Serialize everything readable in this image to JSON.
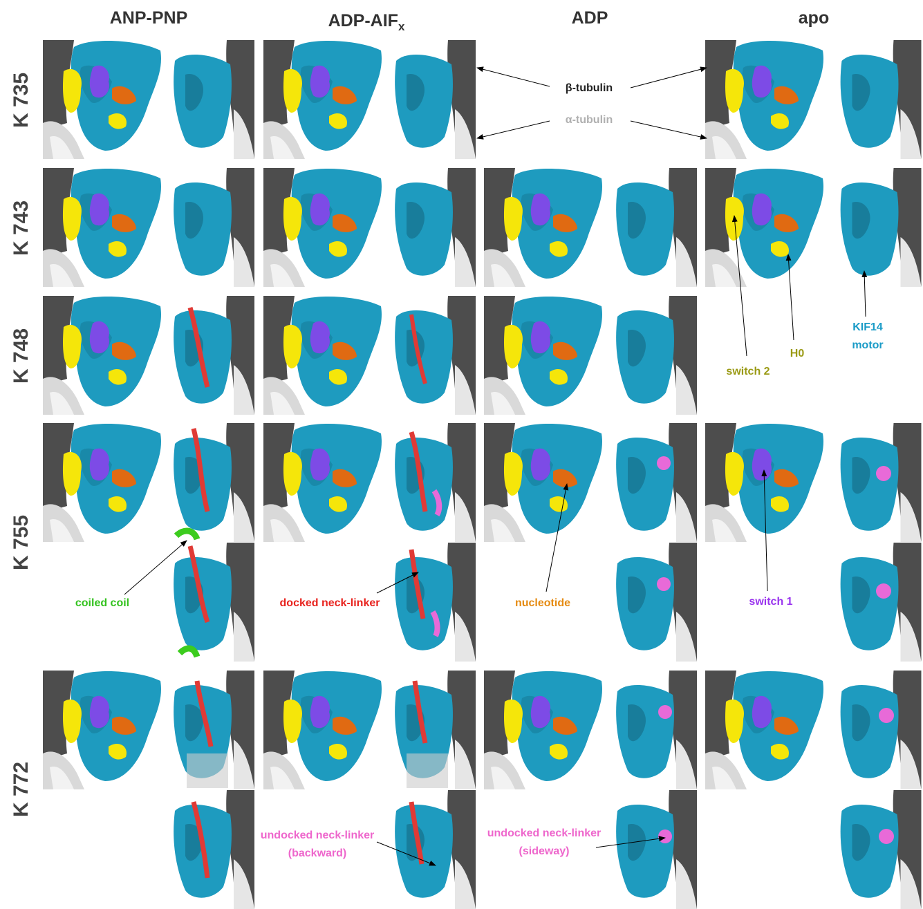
{
  "columns": [
    "ANP-PNP",
    {
      "main": "ADP-AIF",
      "sub": "x"
    },
    "ADP",
    "apo"
  ],
  "rows": [
    "K 735",
    "K 743",
    "K 748",
    "K 755",
    "K 772"
  ],
  "labels": {
    "beta_tubulin": "β-tubulin",
    "alpha_tubulin": "α-tubulin",
    "switch_2": "switch 2",
    "h0": "H0",
    "kif14_motor": [
      "KIF14",
      "motor"
    ],
    "coiled_coil": "coiled coil",
    "docked_neck_linker": "docked neck-linker",
    "nucleotide": "nucleotide",
    "switch_1": "switch 1",
    "undocked_backward": [
      "undocked neck-linker",
      "(backward)"
    ],
    "undocked_sideway": [
      "undocked neck-linker",
      "(sideway)"
    ]
  }
}
